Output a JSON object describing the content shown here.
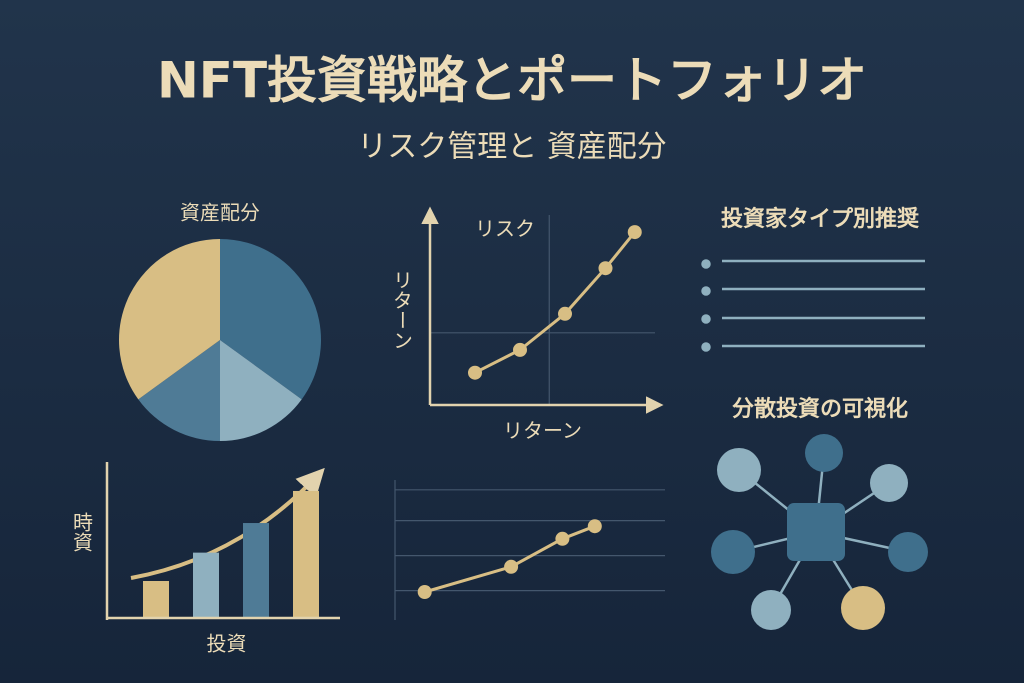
{
  "title": "NFT投資戦略とポートフォリオ",
  "subtitle": "リスク管理と 資産配分",
  "sections": [
    {
      "title": "投資家タイプ別推奨"
    },
    {
      "title": "分散投資の可視化"
    }
  ],
  "chart_data": [
    {
      "type": "pie",
      "title": "資産配分",
      "categories": [
        null,
        null,
        null,
        null
      ],
      "values": [
        35,
        15,
        15,
        35
      ],
      "colors": [
        "#3f6f8c",
        "#8fb0bf",
        "#4f7b96",
        "#d8be84"
      ]
    },
    {
      "type": "line",
      "annotation": "リスク",
      "x_label": "リターン",
      "y_label": "リターン",
      "x": [
        2.0,
        4.0,
        6.0,
        7.8,
        9.1
      ],
      "values": [
        1.7,
        2.9,
        4.8,
        7.2,
        9.1
      ],
      "color": "#d8be84",
      "xlim": [
        0,
        10
      ],
      "ylim": [
        0,
        10
      ],
      "grid": true
    },
    {
      "type": "bar",
      "x_label": "投資",
      "y_label": "時資",
      "categories": [
        null,
        null,
        null,
        null
      ],
      "values": [
        30,
        53,
        77,
        103
      ],
      "colors": [
        "#d8be84",
        "#8fb0bf",
        "#4f7b96",
        "#d8be84"
      ],
      "ylim": [
        0,
        120
      ]
    },
    {
      "type": "line",
      "x": [
        1.1,
        4.3,
        6.2,
        7.4
      ],
      "values": [
        2.0,
        3.8,
        5.8,
        6.7
      ],
      "color": "#d8be84",
      "xlim": [
        0,
        10
      ],
      "ylim": [
        0,
        10
      ],
      "grid": true
    }
  ]
}
